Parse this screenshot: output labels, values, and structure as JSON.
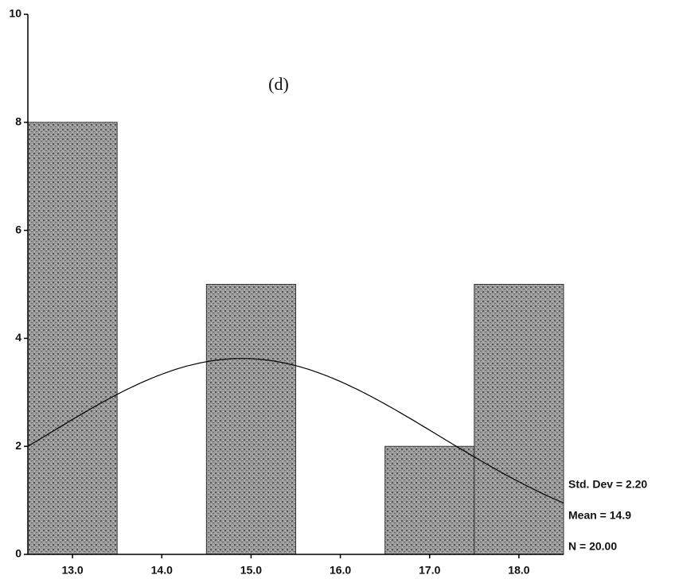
{
  "chart_data": {
    "type": "histogram",
    "annotation": "(d)",
    "bins": [
      12.5,
      13.5,
      14.5,
      15.5,
      16.5,
      17.5,
      18.5
    ],
    "values": [
      8,
      0,
      5,
      0,
      2,
      5
    ],
    "color": "#8a8a8a",
    "xlim": [
      12.5,
      18.5
    ],
    "xticks": [
      {
        "value": 13,
        "label": "13.0"
      },
      {
        "value": 14,
        "label": "14.0"
      },
      {
        "value": 15,
        "label": "15.0"
      },
      {
        "value": 16,
        "label": "16.0"
      },
      {
        "value": 17,
        "label": "17.0"
      },
      {
        "value": 18,
        "label": "18.0"
      }
    ],
    "ylim": [
      0,
      10
    ],
    "yticks": [
      0,
      2,
      4,
      6,
      8,
      10
    ],
    "stats": {
      "sd": {
        "value": 2.2,
        "label": "Std. Dev = 2.20"
      },
      "mean": {
        "value": 14.9,
        "label": "Mean = 14.9"
      },
      "n": {
        "value": 20,
        "label": "N = 20.00"
      }
    }
  }
}
